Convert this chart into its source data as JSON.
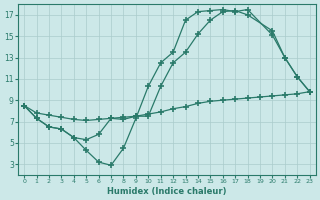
{
  "xlabel": "Humidex (Indice chaleur)",
  "ylabel": "",
  "bg_color": "#cce8e8",
  "line_color": "#2a7a6a",
  "grid_color": "#aacccc",
  "xlim": [
    -0.5,
    23.5
  ],
  "ylim": [
    2,
    18
  ],
  "xticks": [
    0,
    1,
    2,
    3,
    4,
    5,
    6,
    7,
    8,
    9,
    10,
    11,
    12,
    13,
    14,
    15,
    16,
    17,
    18,
    19,
    20,
    21,
    22,
    23
  ],
  "yticks": [
    3,
    5,
    7,
    9,
    11,
    13,
    15,
    17
  ],
  "line1_x": [
    0,
    1,
    2,
    3,
    4,
    5,
    6,
    7,
    8,
    9,
    10,
    11,
    12,
    13,
    14,
    15,
    16,
    17,
    18,
    20,
    21,
    22,
    23
  ],
  "line1_y": [
    8.5,
    7.3,
    6.5,
    6.3,
    5.5,
    4.3,
    3.2,
    2.9,
    4.5,
    7.3,
    10.3,
    12.5,
    13.5,
    16.5,
    17.3,
    17.4,
    17.5,
    17.3,
    17.5,
    15.1,
    13.0,
    11.2,
    9.8
  ],
  "line2_x": [
    0,
    1,
    2,
    3,
    4,
    5,
    6,
    7,
    8,
    9,
    10,
    11,
    12,
    13,
    14,
    15,
    16,
    17,
    18,
    20,
    21,
    22,
    23
  ],
  "line2_y": [
    8.5,
    7.3,
    6.5,
    6.3,
    5.5,
    5.3,
    5.8,
    7.3,
    7.2,
    7.5,
    7.5,
    10.3,
    12.5,
    13.5,
    15.2,
    16.5,
    17.3,
    17.4,
    17.0,
    15.5,
    13.0,
    11.2,
    9.8
  ],
  "line3_x": [
    0,
    1,
    2,
    3,
    4,
    5,
    6,
    7,
    8,
    9,
    10,
    11,
    12,
    13,
    14,
    15,
    16,
    17,
    18,
    19,
    20,
    21,
    22,
    23
  ],
  "line3_y": [
    8.5,
    7.8,
    7.6,
    7.4,
    7.2,
    7.1,
    7.2,
    7.3,
    7.4,
    7.5,
    7.7,
    7.9,
    8.2,
    8.4,
    8.7,
    8.9,
    9.0,
    9.1,
    9.2,
    9.3,
    9.4,
    9.5,
    9.6,
    9.8
  ]
}
